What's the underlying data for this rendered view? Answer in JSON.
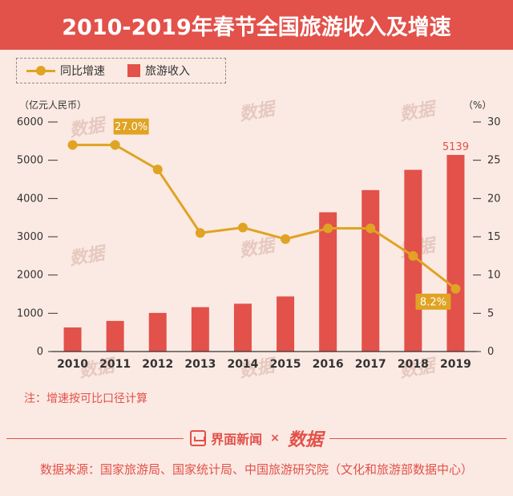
{
  "title": "2010-2019年春节全国旅游收入及增速",
  "legend": {
    "line_label": "同比增速",
    "bar_label": "旅游收入"
  },
  "colors": {
    "accent": "#e2514a",
    "line": "#e0a323",
    "background": "#fbeae3",
    "watermark": "#e6c9c0"
  },
  "chart_data": {
    "type": "bar",
    "title": "2010-2019年春节全国旅游收入及增速",
    "categories": [
      "2010",
      "2011",
      "2012",
      "2013",
      "2014",
      "2015",
      "2016",
      "2017",
      "2018",
      "2019"
    ],
    "series": [
      {
        "name": "旅游收入",
        "type": "bar",
        "axis": "left",
        "values": [
          630,
          800,
          1010,
          1160,
          1250,
          1440,
          3640,
          4220,
          4750,
          5139
        ]
      },
      {
        "name": "同比增速",
        "type": "line",
        "axis": "right",
        "values": [
          27.0,
          27.0,
          23.8,
          15.5,
          16.2,
          14.7,
          16.1,
          16.1,
          12.5,
          8.2
        ]
      }
    ],
    "y_left": {
      "label": "（亿元人民币）",
      "lim": [
        0,
        6000
      ],
      "ticks": [
        "0",
        "1000",
        "2000",
        "3000",
        "4000",
        "5000",
        "6000"
      ]
    },
    "y_right": {
      "label": "（%）",
      "lim": [
        0,
        30
      ],
      "ticks": [
        "0",
        "5",
        "10",
        "15",
        "20",
        "25",
        "30"
      ]
    },
    "annotations": [
      {
        "series": "同比增速",
        "index": 1,
        "text": "27.0%"
      },
      {
        "series": "同比增速",
        "index": 9,
        "text": "8.2%"
      },
      {
        "series": "旅游收入",
        "index": 9,
        "text": "5139"
      }
    ],
    "grid": false,
    "legend_position": "top-left"
  },
  "watermark_text": "数据",
  "note": "注：增速按可比口径计算",
  "footer": {
    "brand": "界面新闻",
    "times": "×",
    "brand2": "数据"
  },
  "source": "数据来源：国家旅游局、国家统计局、中国旅游研究院（文化和旅游部数据中心）"
}
